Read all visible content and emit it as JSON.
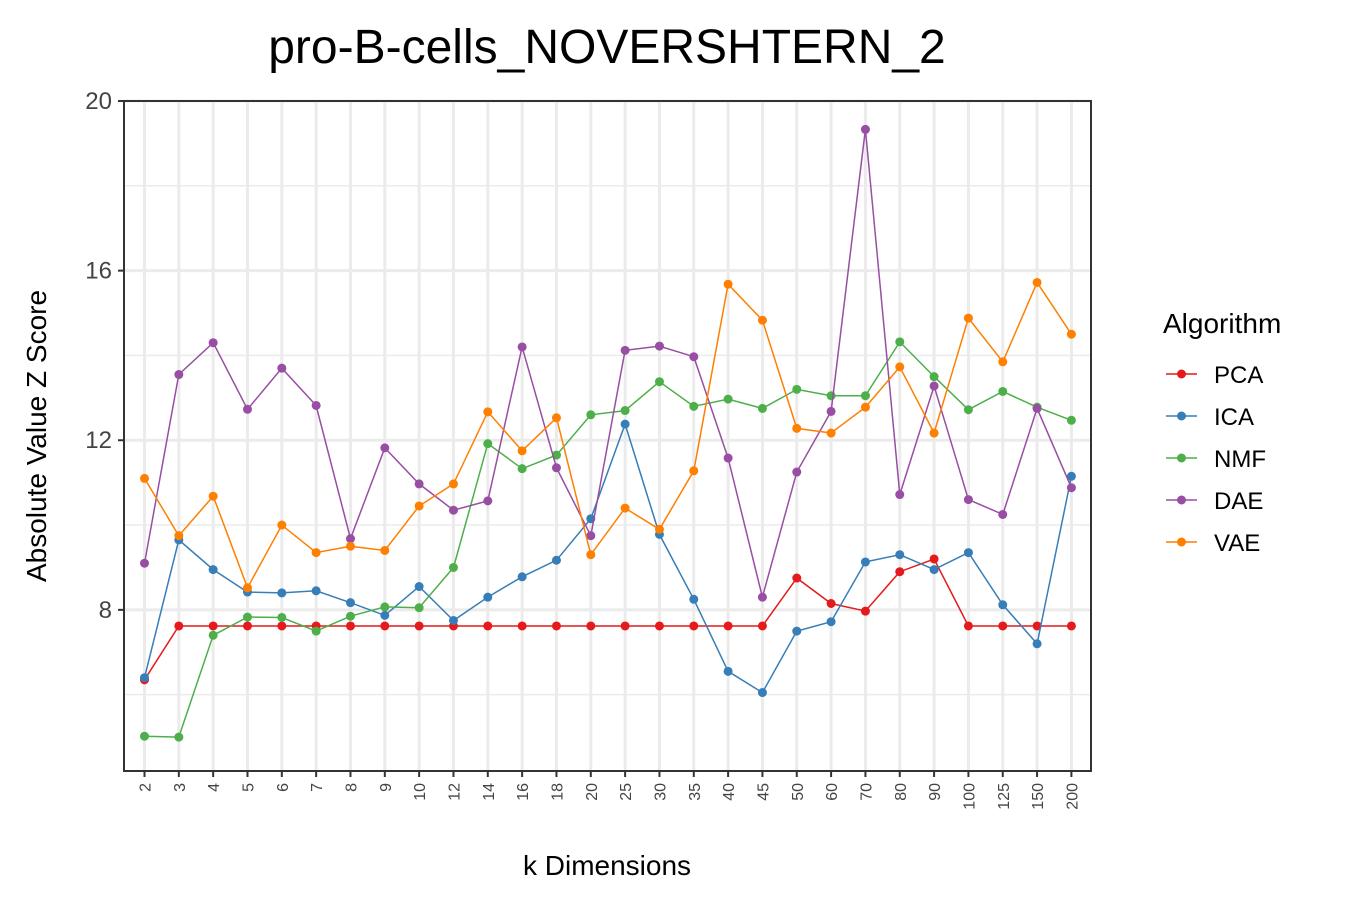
{
  "chart_data": {
    "type": "line",
    "title": "pro-B-cells_NOVERSHTERN_2",
    "xlabel": "k Dimensions",
    "ylabel": "Absolute Value Z Score",
    "ylim": [
      4.2,
      20
    ],
    "yticks": [
      8,
      12,
      16,
      20
    ],
    "legend_title": "Algorithm",
    "legend_position": "right",
    "categories": [
      "2",
      "3",
      "4",
      "5",
      "6",
      "7",
      "8",
      "9",
      "10",
      "12",
      "14",
      "16",
      "18",
      "20",
      "25",
      "30",
      "35",
      "40",
      "45",
      "50",
      "60",
      "70",
      "80",
      "90",
      "100",
      "125",
      "150",
      "200"
    ],
    "series": [
      {
        "name": "PCA",
        "color": "#e41a1c",
        "values": [
          6.35,
          7.62,
          7.62,
          7.62,
          7.62,
          7.62,
          7.62,
          7.62,
          7.62,
          7.62,
          7.62,
          7.62,
          7.62,
          7.62,
          7.62,
          7.62,
          7.62,
          7.62,
          7.62,
          8.75,
          8.15,
          7.97,
          8.9,
          9.2,
          7.62,
          7.62,
          7.62,
          7.62
        ]
      },
      {
        "name": "ICA",
        "color": "#377eb8",
        "values": [
          6.4,
          9.65,
          8.95,
          8.42,
          8.4,
          8.45,
          8.17,
          7.87,
          8.55,
          7.75,
          8.3,
          8.78,
          9.17,
          10.15,
          12.38,
          9.78,
          8.25,
          6.55,
          6.05,
          7.5,
          7.72,
          9.13,
          9.3,
          8.95,
          9.35,
          8.12,
          7.2,
          11.15
        ]
      },
      {
        "name": "NMF",
        "color": "#4daf4a",
        "values": [
          5.02,
          5.0,
          7.4,
          7.83,
          7.82,
          7.5,
          7.85,
          8.07,
          8.05,
          9.0,
          11.92,
          11.33,
          11.65,
          12.6,
          12.7,
          13.38,
          12.8,
          12.97,
          12.75,
          13.2,
          13.05,
          13.05,
          14.32,
          13.5,
          12.72,
          13.15,
          12.78,
          12.47
        ]
      },
      {
        "name": "DAE",
        "color": "#984ea3",
        "values": [
          9.1,
          13.55,
          14.3,
          12.73,
          13.7,
          12.82,
          9.68,
          11.82,
          10.97,
          10.35,
          10.57,
          14.2,
          11.35,
          9.75,
          14.12,
          14.22,
          13.97,
          11.58,
          8.3,
          11.25,
          12.68,
          19.33,
          10.72,
          13.28,
          10.6,
          10.25,
          12.75,
          10.88
        ]
      },
      {
        "name": "VAE",
        "color": "#ff7f00",
        "values": [
          11.1,
          9.75,
          10.68,
          8.52,
          10.0,
          9.35,
          9.5,
          9.4,
          10.45,
          10.97,
          12.67,
          11.75,
          12.53,
          9.3,
          10.4,
          9.9,
          11.28,
          15.68,
          14.83,
          12.28,
          12.17,
          12.78,
          13.73,
          12.17,
          14.88,
          13.85,
          15.72,
          14.5
        ]
      }
    ]
  }
}
